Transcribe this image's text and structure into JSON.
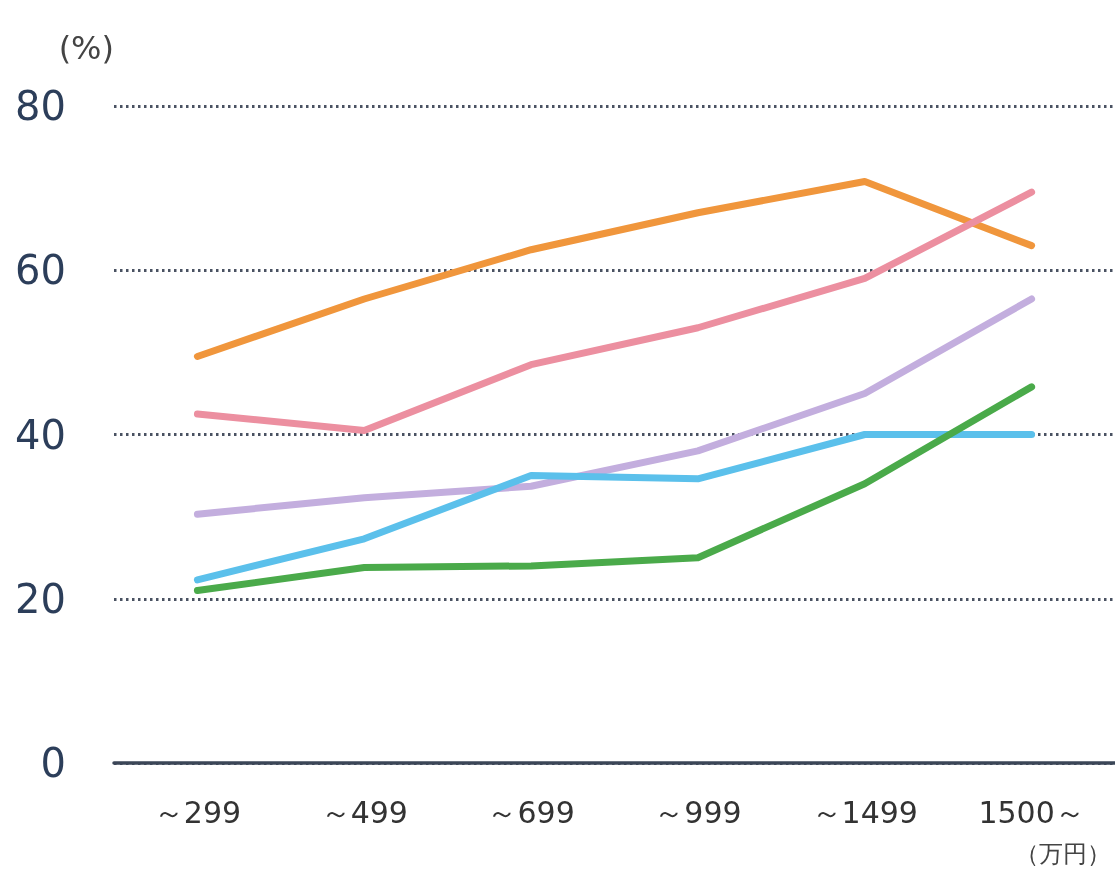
{
  "chart_data": {
    "type": "line",
    "ylabel": "(%)",
    "xlabel": "（万円）",
    "categories": [
      "～299",
      "～499",
      "～699",
      "～999",
      "～1499",
      "1500～"
    ],
    "series": [
      {
        "color": "#f0963c",
        "values": [
          49.5,
          56.5,
          62.5,
          67,
          70.8,
          63
        ]
      },
      {
        "color": "#ec8fa0",
        "values": [
          42.5,
          40.5,
          48.5,
          53,
          59,
          69.5
        ]
      },
      {
        "color": "#c3aede",
        "values": [
          30.3,
          32.3,
          33.7,
          38,
          45,
          56.5
        ]
      },
      {
        "color": "#5bc0eb",
        "values": [
          22.3,
          27.3,
          35,
          34.6,
          40,
          40
        ]
      },
      {
        "color": "#4aaa4a",
        "values": [
          21,
          23.8,
          24,
          25,
          34,
          45.8
        ]
      }
    ],
    "ylim": [
      0,
      80
    ],
    "yticks": [
      0,
      20,
      40,
      60,
      80
    ],
    "grid": "y",
    "marker": "none",
    "line_style": "solid"
  }
}
